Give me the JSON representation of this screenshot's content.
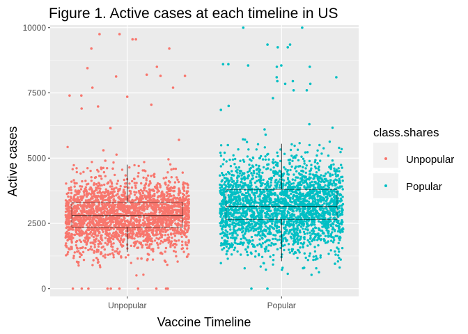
{
  "chart_data": {
    "type": "scatter",
    "title": "Figure 1. Active cases at each timeline in US",
    "xlabel": "Vaccine Timeline",
    "ylabel": "Active cases",
    "categories": [
      "Unpopular",
      "Popular"
    ],
    "ylim": [
      -300,
      10100
    ],
    "yticks": [
      0,
      2500,
      5000,
      7500,
      10000
    ],
    "ytick_labels": [
      "0",
      "2500",
      "5000",
      "7500",
      "10000"
    ],
    "grid": true,
    "legend": {
      "title": "class.shares",
      "position": "right",
      "entries": [
        "Unpopular",
        "Popular"
      ]
    },
    "colors": {
      "Unpopular": "#F8766D",
      "Popular": "#00BFC4",
      "panel": "#EBEBEB",
      "grid": "#FFFFFF",
      "boxplot": "#000000"
    },
    "series": [
      {
        "name": "Unpopular",
        "category": "Unpopular",
        "n_points_approx": 2500,
        "median": 2800,
        "q1": 2350,
        "q3": 3300,
        "whisker_low": 1400,
        "whisker_high": 4750,
        "outliers": [
          0,
          0,
          0,
          0,
          0,
          8200,
          8500,
          9200,
          9550,
          9750,
          8150,
          7700,
          7400
        ],
        "values": [
          9750,
          9550,
          9200,
          8450,
          8150,
          8130,
          7700,
          7400,
          7350,
          7050,
          6980,
          6900,
          6150,
          0,
          0,
          0,
          0,
          0,
          1000,
          1150,
          1300,
          1500,
          1700,
          1900,
          2100,
          2250,
          2400,
          2550,
          2700,
          2800,
          2900,
          3000,
          3100,
          3250,
          3400,
          3600,
          3800,
          4000,
          4300,
          4600,
          4900,
          5300,
          5700
        ]
      },
      {
        "name": "Popular",
        "category": "Popular",
        "n_points_approx": 2500,
        "median": 3150,
        "q1": 2650,
        "q3": 3800,
        "whisker_low": 1050,
        "whisker_high": 5550,
        "outliers": [
          10000,
          9350,
          9250,
          8600,
          8550,
          8500,
          8100,
          7950,
          7850,
          7600,
          0
        ],
        "values": [
          10000,
          9350,
          9250,
          8600,
          8550,
          8500,
          8100,
          7950,
          7850,
          7600,
          7300,
          7000,
          6850,
          6300,
          6100,
          0,
          800,
          950,
          1100,
          1300,
          1500,
          1750,
          2000,
          2250,
          2500,
          2700,
          2900,
          3050,
          3200,
          3350,
          3550,
          3750,
          3950,
          4200,
          4500,
          4800,
          5100,
          5500,
          5900
        ]
      }
    ]
  }
}
